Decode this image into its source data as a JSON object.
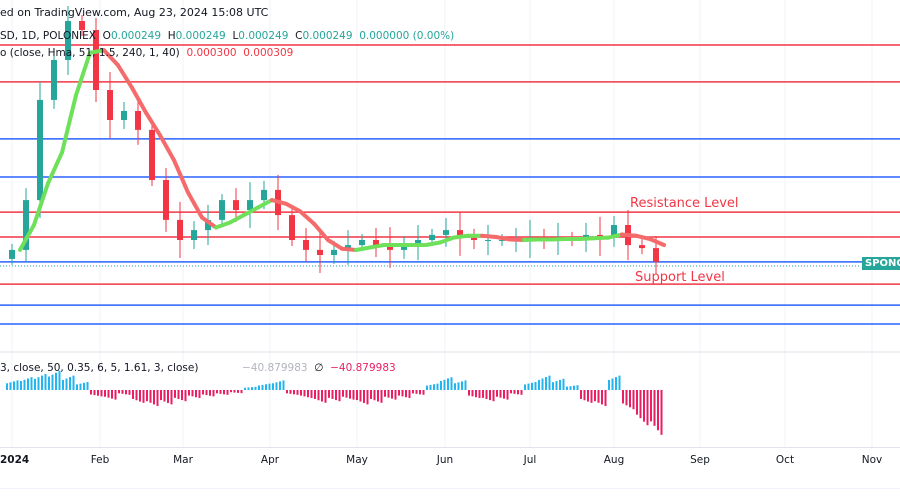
{
  "header": {
    "published": "ed on TradingView.com, Aug 23, 2024 15:08 UTC",
    "symbol": "SD, 1D, POLONIEX",
    "o_label": "O",
    "o": "0.000249",
    "h_label": "H",
    "h": "0.000249",
    "l_label": "L",
    "l": "0.000249",
    "c_label": "C",
    "c": "0.000249",
    "change": "0.000000 (0.00%)",
    "indicator": "o (close, Hma, 51, 1.5, 240, 1, 40)",
    "ind_v1": "0.000300",
    "ind_v2": "0.000309"
  },
  "oscillator": {
    "label": "3, close, 50, 0.35, 6, 5, 1.61, 3, close)",
    "v1": "−40.879983",
    "sep": "∅",
    "v2": "−40.879983"
  },
  "annotations": {
    "resistance": "Resistance Level",
    "support": "Support Level"
  },
  "price_tag": "SPONG",
  "colors": {
    "up": "#26a69a",
    "down": "#f23645",
    "hma_up": "#6ee05a",
    "hma_down": "#f56a6a",
    "blue": "#2962ff",
    "osc_pos": "#22b5f0",
    "osc_neg": "#e91e63"
  },
  "chart_data": {
    "type": "candlestick",
    "title": "SD, 1D, POLONIEX",
    "xlabel": "",
    "ylabel": "",
    "x_ticks": [
      "2024",
      "Feb",
      "Mar",
      "Apr",
      "May",
      "Jun",
      "Jul",
      "Aug",
      "Sep",
      "Oct",
      "Nov"
    ],
    "ylim": [
      0,
      110
    ],
    "levels": [
      {
        "value": 95,
        "color": "red"
      },
      {
        "value": 82.7,
        "color": "red"
      },
      {
        "value": 63.7,
        "color": "blue"
      },
      {
        "value": 51,
        "color": "blue"
      },
      {
        "value": 39.3,
        "color": "red",
        "label": "Resistance Level"
      },
      {
        "value": 31,
        "color": "red"
      },
      {
        "value": 22.7,
        "color": "blue"
      },
      {
        "value": 15.3,
        "color": "red",
        "label": "Support Level"
      },
      {
        "value": 8.3,
        "color": "blue"
      },
      {
        "value": 2,
        "color": "blue"
      }
    ],
    "closes": [
      26.7,
      43.3,
      76.7,
      90,
      103,
      100,
      80,
      70,
      73,
      66.7,
      50,
      36.7,
      30,
      33.3,
      36.7,
      43.3,
      40,
      43.3,
      46.7,
      38.3,
      30,
      26.7,
      25,
      26.7,
      28.3,
      30,
      28.3,
      26.7,
      28.3,
      30,
      31.7,
      33.3,
      30.7,
      30,
      30,
      30,
      30,
      30.7,
      30,
      30.7,
      30,
      31.7,
      30.7,
      35,
      28.3,
      27.3,
      22.7
    ],
    "oscillator": [
      6,
      8,
      10,
      12,
      9,
      5,
      -4,
      -6,
      -3,
      -8,
      -10,
      -9,
      -7,
      -5,
      -4,
      -3,
      -2,
      2,
      4,
      6,
      -3,
      -5,
      -8,
      -7,
      -6,
      -9,
      -8,
      -6,
      -5,
      -3,
      4,
      8,
      6,
      -5,
      -7,
      -6,
      -3,
      5,
      9,
      7,
      3,
      -8,
      -10,
      9,
      -12,
      -22,
      -28
    ]
  }
}
